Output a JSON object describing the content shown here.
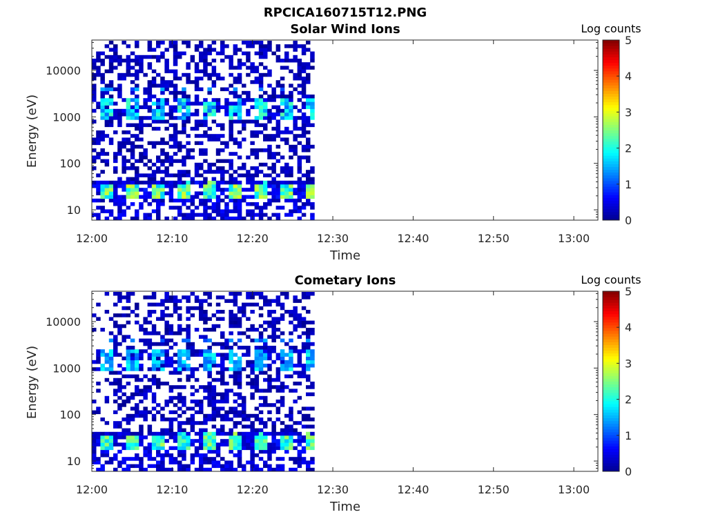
{
  "figure_title": "RPCICA160715T12.PNG",
  "colormap": [
    "#00008f",
    "#0000ff",
    "#0080ff",
    "#00ffff",
    "#80ff80",
    "#ffff00",
    "#ff8000",
    "#ff0000",
    "#800000"
  ],
  "chart_data": [
    {
      "type": "heatmap",
      "title": "Solar Wind Ions",
      "xlabel": "Time",
      "ylabel": "Energy (eV)",
      "x_ticks": [
        "12:00",
        "12:10",
        "12:20",
        "12:30",
        "12:40",
        "12:50",
        "13:00"
      ],
      "x_range": [
        "12:00",
        "13:03"
      ],
      "data_end_time": "12:28",
      "y_scale": "log",
      "y_ticks": [
        "10",
        "100",
        "1000",
        "10000"
      ],
      "y_range": [
        6,
        45000
      ],
      "colorbar": {
        "label": "Log counts",
        "range": [
          0,
          5
        ],
        "ticks": [
          "0",
          "1",
          "2",
          "3",
          "4",
          "5"
        ]
      },
      "features": [
        {
          "energy_range_ev": [
            5,
            40
          ],
          "value_range": [
            0,
            3
          ],
          "note_periodic_minutes": 3.2
        },
        {
          "energy_range_ev": [
            800,
            2500
          ],
          "value_range": [
            0,
            2.3
          ]
        },
        {
          "energy_range_ev": [
            40,
            45000
          ],
          "value_range": [
            0,
            0.5
          ]
        }
      ]
    },
    {
      "type": "heatmap",
      "title": "Cometary Ions",
      "xlabel": "Time",
      "ylabel": "Energy (eV)",
      "x_ticks": [
        "12:00",
        "12:10",
        "12:20",
        "12:30",
        "12:40",
        "12:50",
        "13:00"
      ],
      "x_range": [
        "12:00",
        "13:03"
      ],
      "data_end_time": "12:28",
      "y_scale": "log",
      "y_ticks": [
        "10",
        "100",
        "1000",
        "10000"
      ],
      "y_range": [
        6,
        45000
      ],
      "colorbar": {
        "label": "Log counts",
        "range": [
          0,
          5
        ],
        "ticks": [
          "0",
          "1",
          "2",
          "3",
          "4",
          "5"
        ]
      },
      "features": [
        {
          "energy_range_ev": [
            5,
            40
          ],
          "value_range": [
            0,
            2.8
          ],
          "note_periodic_minutes": 3.2
        },
        {
          "energy_range_ev": [
            800,
            2500
          ],
          "value_range": [
            0,
            2.0
          ]
        },
        {
          "energy_range_ev": [
            40,
            45000
          ],
          "value_range": [
            0,
            0.5
          ]
        }
      ]
    }
  ]
}
